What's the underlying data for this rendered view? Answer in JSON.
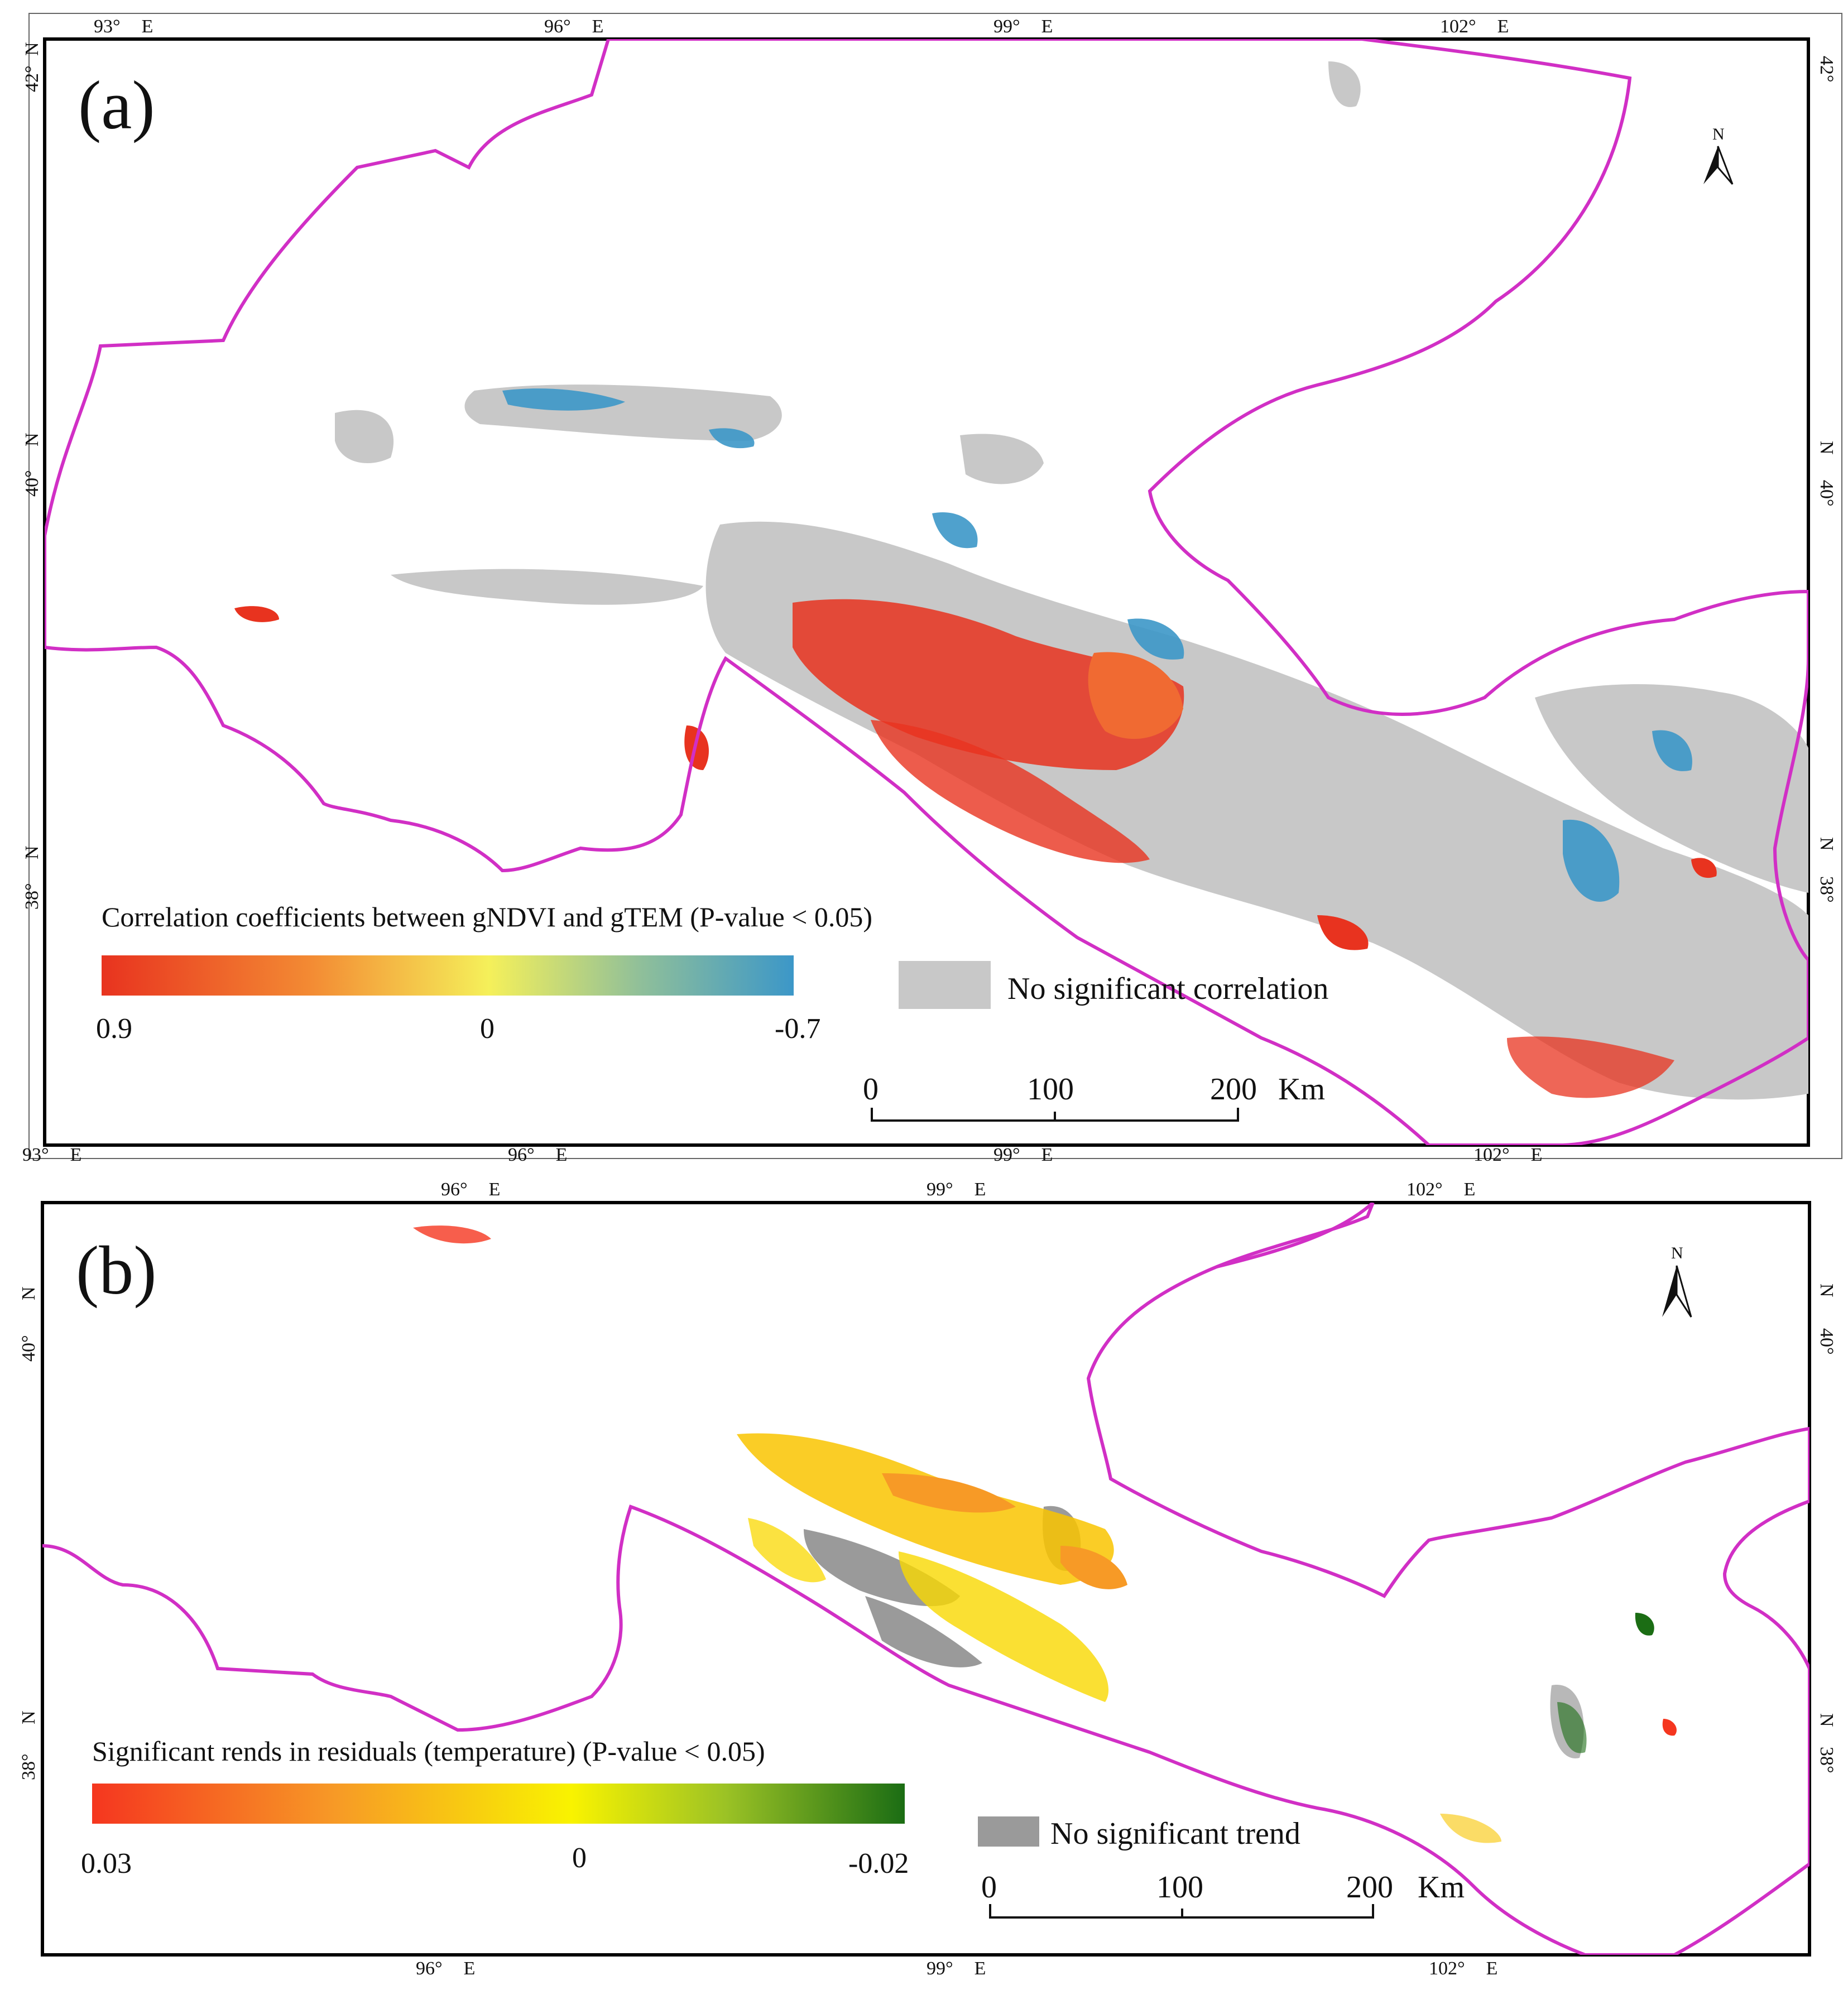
{
  "panels": [
    {
      "id": "a",
      "label": "(a)",
      "ticks_top": [
        "93°",
        "96°",
        "99°",
        "102°"
      ],
      "ticks_bottom": [
        "93°",
        "96°",
        "99°",
        "102°"
      ],
      "ticks_left": [
        "42°",
        "40°",
        "38°"
      ],
      "ticks_right": [
        "42°",
        "40°",
        "38°"
      ],
      "unit_e": "E",
      "unit_n": "N",
      "north_label": "N",
      "legend": {
        "title": "Correlation coefficients between gNDVI and gTEM (P-value < 0.05)",
        "min_label": "0.9",
        "mid_label": "0",
        "max_label": "-0.7",
        "range": [
          0.9,
          -0.7
        ],
        "colors": [
          "#e8331f",
          "#f38a33",
          "#f5f05a",
          "#8fbf9a",
          "#3c97c8"
        ],
        "no_sig_label": "No significant correlation",
        "no_sig_color": "#c8c8c8"
      },
      "scale": {
        "labels": [
          "0",
          "100",
          "200"
        ],
        "unit": "Km"
      },
      "boundary_color": "#d12fc5"
    },
    {
      "id": "b",
      "label": "(b)",
      "ticks_top": [
        "96°",
        "99°",
        "102°"
      ],
      "ticks_bottom": [
        "96°",
        "99°",
        "102°"
      ],
      "ticks_left": [
        "40°",
        "38°"
      ],
      "ticks_right": [
        "40°",
        "38°"
      ],
      "unit_e": "E",
      "unit_n": "N",
      "north_label": "N",
      "legend": {
        "title": "Significant rends in residuals (temperature) (P-value < 0.05)",
        "min_label": "0.03",
        "mid_label": "0",
        "max_label": "-0.02",
        "range": [
          0.03,
          -0.02
        ],
        "colors": [
          "#f5361f",
          "#f79a26",
          "#f9f300",
          "#9bc225",
          "#1b6d14"
        ],
        "no_sig_label": "No significant trend",
        "no_sig_color": "#9a9a9a"
      },
      "scale": {
        "labels": [
          "0",
          "100",
          "200"
        ],
        "unit": "Km"
      },
      "boundary_color": "#d12fc5"
    }
  ]
}
